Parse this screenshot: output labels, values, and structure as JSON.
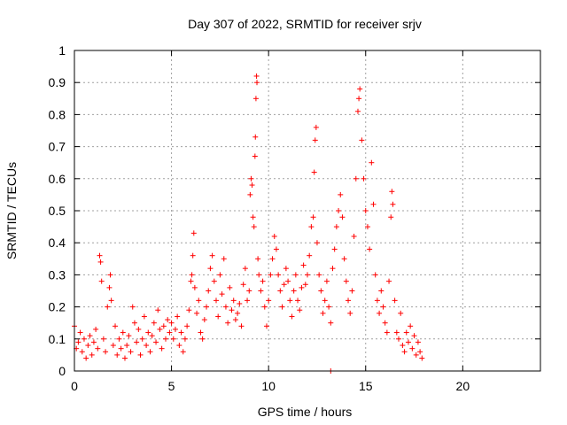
{
  "chart_data": {
    "type": "scatter",
    "title": "Day 307 of 2022, SRMTID for receiver srjv",
    "xlabel": "GPS time / hours",
    "ylabel": "SRMTID / TECUs",
    "xlim": [
      0,
      24
    ],
    "ylim": [
      0,
      1
    ],
    "grid": true,
    "marker": "plus",
    "marker_color": "#ff0000",
    "x_ticks": [
      0,
      5,
      10,
      15,
      20
    ],
    "y_ticks": [
      0,
      0.1,
      0.2,
      0.3,
      0.4,
      0.5,
      0.6,
      0.7,
      0.8,
      0.9,
      1
    ],
    "x_tick_labels": [
      "0",
      "5",
      "10",
      "15",
      "20"
    ],
    "y_tick_labels": [
      "0",
      "0.1",
      "0.2",
      "0.3",
      "0.4",
      "0.5",
      "0.6",
      "0.7",
      "0.8",
      "0.9",
      "1"
    ],
    "series": [
      {
        "name": "SRMTID",
        "points": [
          [
            0.0,
            0.14
          ],
          [
            0.1,
            0.07
          ],
          [
            0.2,
            0.09
          ],
          [
            0.3,
            0.12
          ],
          [
            0.4,
            0.06
          ],
          [
            0.5,
            0.1
          ],
          [
            0.6,
            0.04
          ],
          [
            0.7,
            0.08
          ],
          [
            0.8,
            0.11
          ],
          [
            0.9,
            0.05
          ],
          [
            1.0,
            0.09
          ],
          [
            1.1,
            0.13
          ],
          [
            1.2,
            0.07
          ],
          [
            1.3,
            0.36
          ],
          [
            1.35,
            0.34
          ],
          [
            1.4,
            0.28
          ],
          [
            1.5,
            0.1
          ],
          [
            1.6,
            0.06
          ],
          [
            1.7,
            0.2
          ],
          [
            1.8,
            0.26
          ],
          [
            1.85,
            0.3
          ],
          [
            1.9,
            0.22
          ],
          [
            2.0,
            0.08
          ],
          [
            2.1,
            0.14
          ],
          [
            2.2,
            0.05
          ],
          [
            2.3,
            0.1
          ],
          [
            2.4,
            0.07
          ],
          [
            2.5,
            0.12
          ],
          [
            2.6,
            0.04
          ],
          [
            2.7,
            0.08
          ],
          [
            2.8,
            0.11
          ],
          [
            2.9,
            0.06
          ],
          [
            3.0,
            0.2
          ],
          [
            3.1,
            0.15
          ],
          [
            3.2,
            0.09
          ],
          [
            3.3,
            0.13
          ],
          [
            3.4,
            0.05
          ],
          [
            3.5,
            0.1
          ],
          [
            3.6,
            0.17
          ],
          [
            3.7,
            0.08
          ],
          [
            3.8,
            0.12
          ],
          [
            3.9,
            0.06
          ],
          [
            4.0,
            0.11
          ],
          [
            4.1,
            0.15
          ],
          [
            4.2,
            0.09
          ],
          [
            4.3,
            0.19
          ],
          [
            4.4,
            0.13
          ],
          [
            4.5,
            0.07
          ],
          [
            4.6,
            0.14
          ],
          [
            4.7,
            0.1
          ],
          [
            4.8,
            0.16
          ],
          [
            4.9,
            0.12
          ],
          [
            5.0,
            0.15
          ],
          [
            5.1,
            0.1
          ],
          [
            5.2,
            0.13
          ],
          [
            5.3,
            0.17
          ],
          [
            5.4,
            0.08
          ],
          [
            5.5,
            0.12
          ],
          [
            5.6,
            0.06
          ],
          [
            5.7,
            0.1
          ],
          [
            5.8,
            0.14
          ],
          [
            5.9,
            0.19
          ],
          [
            6.0,
            0.28
          ],
          [
            6.05,
            0.3
          ],
          [
            6.1,
            0.36
          ],
          [
            6.15,
            0.43
          ],
          [
            6.2,
            0.26
          ],
          [
            6.3,
            0.18
          ],
          [
            6.4,
            0.22
          ],
          [
            6.5,
            0.12
          ],
          [
            6.6,
            0.1
          ],
          [
            6.7,
            0.16
          ],
          [
            6.8,
            0.2
          ],
          [
            6.9,
            0.25
          ],
          [
            7.0,
            0.32
          ],
          [
            7.1,
            0.36
          ],
          [
            7.2,
            0.28
          ],
          [
            7.3,
            0.22
          ],
          [
            7.4,
            0.17
          ],
          [
            7.5,
            0.3
          ],
          [
            7.6,
            0.24
          ],
          [
            7.7,
            0.35
          ],
          [
            7.8,
            0.2
          ],
          [
            7.9,
            0.15
          ],
          [
            8.0,
            0.26
          ],
          [
            8.1,
            0.19
          ],
          [
            8.2,
            0.22
          ],
          [
            8.3,
            0.16
          ],
          [
            8.4,
            0.18
          ],
          [
            8.5,
            0.21
          ],
          [
            8.6,
            0.14
          ],
          [
            8.7,
            0.27
          ],
          [
            8.8,
            0.32
          ],
          [
            8.9,
            0.22
          ],
          [
            9.0,
            0.25
          ],
          [
            9.05,
            0.55
          ],
          [
            9.1,
            0.6
          ],
          [
            9.15,
            0.58
          ],
          [
            9.2,
            0.48
          ],
          [
            9.25,
            0.45
          ],
          [
            9.3,
            0.67
          ],
          [
            9.32,
            0.73
          ],
          [
            9.35,
            0.85
          ],
          [
            9.38,
            0.92
          ],
          [
            9.4,
            0.9
          ],
          [
            9.45,
            0.35
          ],
          [
            9.5,
            0.3
          ],
          [
            9.6,
            0.25
          ],
          [
            9.7,
            0.28
          ],
          [
            9.8,
            0.2
          ],
          [
            9.9,
            0.14
          ],
          [
            10.0,
            0.22
          ],
          [
            10.1,
            0.3
          ],
          [
            10.2,
            0.35
          ],
          [
            10.3,
            0.42
          ],
          [
            10.4,
            0.38
          ],
          [
            10.5,
            0.3
          ],
          [
            10.6,
            0.25
          ],
          [
            10.7,
            0.2
          ],
          [
            10.8,
            0.27
          ],
          [
            10.9,
            0.32
          ],
          [
            11.0,
            0.28
          ],
          [
            11.1,
            0.22
          ],
          [
            11.2,
            0.17
          ],
          [
            11.3,
            0.25
          ],
          [
            11.4,
            0.3
          ],
          [
            11.5,
            0.22
          ],
          [
            11.6,
            0.19
          ],
          [
            11.7,
            0.26
          ],
          [
            11.8,
            0.33
          ],
          [
            11.9,
            0.27
          ],
          [
            12.0,
            0.3
          ],
          [
            12.1,
            0.36
          ],
          [
            12.2,
            0.45
          ],
          [
            12.3,
            0.48
          ],
          [
            12.35,
            0.62
          ],
          [
            12.4,
            0.72
          ],
          [
            12.45,
            0.76
          ],
          [
            12.5,
            0.4
          ],
          [
            12.6,
            0.3
          ],
          [
            12.7,
            0.25
          ],
          [
            12.8,
            0.18
          ],
          [
            12.9,
            0.22
          ],
          [
            13.0,
            0.28
          ],
          [
            13.1,
            0.2
          ],
          [
            13.2,
            0.15
          ],
          [
            13.3,
            0.32
          ],
          [
            13.4,
            0.38
          ],
          [
            13.5,
            0.45
          ],
          [
            13.6,
            0.5
          ],
          [
            13.7,
            0.55
          ],
          [
            13.8,
            0.48
          ],
          [
            13.9,
            0.35
          ],
          [
            14.0,
            0.28
          ],
          [
            14.1,
            0.22
          ],
          [
            14.2,
            0.18
          ],
          [
            14.3,
            0.25
          ],
          [
            14.4,
            0.42
          ],
          [
            14.5,
            0.6
          ],
          [
            14.6,
            0.81
          ],
          [
            14.65,
            0.85
          ],
          [
            14.7,
            0.88
          ],
          [
            14.8,
            0.72
          ],
          [
            14.9,
            0.6
          ],
          [
            15.0,
            0.5
          ],
          [
            15.1,
            0.45
          ],
          [
            15.2,
            0.38
          ],
          [
            15.3,
            0.65
          ],
          [
            15.4,
            0.52
          ],
          [
            15.5,
            0.3
          ],
          [
            15.6,
            0.22
          ],
          [
            15.7,
            0.18
          ],
          [
            15.8,
            0.25
          ],
          [
            15.9,
            0.2
          ],
          [
            16.0,
            0.15
          ],
          [
            16.1,
            0.12
          ],
          [
            16.2,
            0.28
          ],
          [
            16.3,
            0.48
          ],
          [
            16.35,
            0.56
          ],
          [
            16.4,
            0.52
          ],
          [
            16.5,
            0.22
          ],
          [
            16.6,
            0.12
          ],
          [
            16.7,
            0.1
          ],
          [
            16.8,
            0.18
          ],
          [
            16.9,
            0.08
          ],
          [
            17.0,
            0.06
          ],
          [
            17.1,
            0.12
          ],
          [
            17.2,
            0.09
          ],
          [
            17.3,
            0.14
          ],
          [
            17.4,
            0.07
          ],
          [
            17.5,
            0.11
          ],
          [
            17.6,
            0.05
          ],
          [
            17.7,
            0.09
          ],
          [
            17.8,
            0.06
          ],
          [
            17.9,
            0.04
          ],
          [
            13.2,
            0.0
          ]
        ]
      }
    ]
  }
}
